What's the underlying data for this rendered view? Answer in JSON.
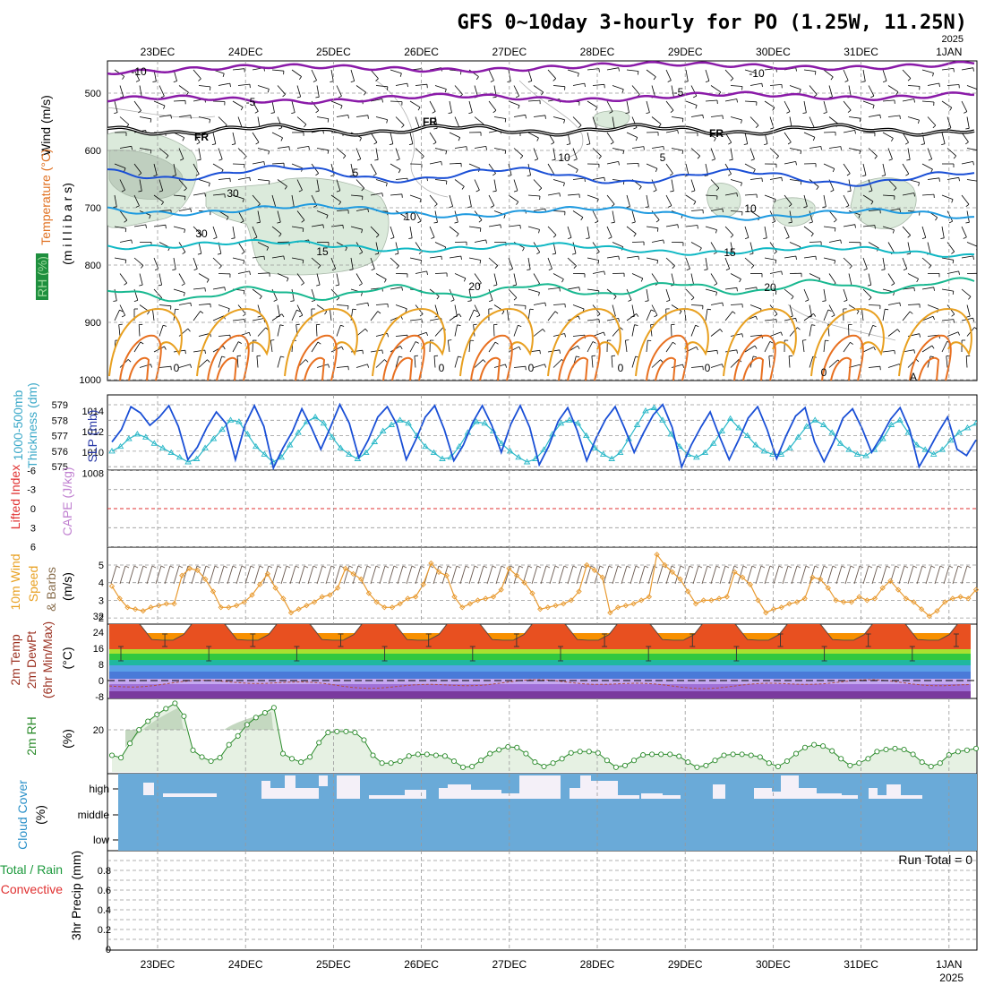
{
  "title": "GFS 0~10day 3-hourly for PO (1.25W, 11.25N)",
  "year_label": "2025",
  "dates": [
    "23DEC",
    "24DEC",
    "25DEC",
    "26DEC",
    "27DEC",
    "28DEC",
    "29DEC",
    "30DEC",
    "31DEC",
    "1JAN"
  ],
  "colors": {
    "purple": "#8a1aa8",
    "black": "#000000",
    "blue": "#1a4fd6",
    "lightblue": "#1e9ae0",
    "cyan": "#10b8c4",
    "green": "#18b890",
    "orange": "#e8a020",
    "darkorange": "#e87020",
    "rh_fill": "#d8ead8",
    "cloud": "#6aaad8",
    "red_dash": "#e03030",
    "grid": "#999999"
  },
  "panel_upper": {
    "label_wind": "Wind (m/s)",
    "label_temp": "Temperature (°C)",
    "label_rh": "RH (%)",
    "label_pressure": "(m i l l i b a r s)",
    "pressure_ticks": [
      "500",
      "600",
      "700",
      "800",
      "900",
      "1000"
    ],
    "contour_labels": [
      "-10",
      "-5",
      "FR",
      "FR",
      "FR",
      "5",
      "5",
      "10",
      "10",
      "15",
      "15",
      "20",
      "20",
      "-10",
      "-5",
      "0",
      "0",
      "0",
      "0",
      "0",
      "0",
      "30",
      "30",
      "10",
      "A"
    ]
  },
  "panel_slp": {
    "label_thick": "1000-500mb Thickness (dm)",
    "label_slp": "SLP (mb)",
    "thick_ticks": [
      "579",
      "578",
      "577",
      "576",
      "575"
    ],
    "slp_ticks": [
      "1014",
      "1012",
      "1010",
      "1008"
    ]
  },
  "panel_cape": {
    "label_li": "Lifted Index",
    "label_cape": "CAPE (J/kg)",
    "ticks": [
      "-6",
      "-3",
      "0",
      "3",
      "6"
    ]
  },
  "panel_wind": {
    "label_main": "10m Wind",
    "label_speed": "Speed",
    "label_units": "(m/s)",
    "label_barbs": "& Barbs",
    "ticks": [
      "5",
      "4",
      "3",
      "2"
    ]
  },
  "panel_temp": {
    "label_a": "2m Temp",
    "label_b": "2m DewPt",
    "label_c": "(6hr Min/Max)",
    "label_units": "(°C)",
    "ticks": [
      "32",
      "24",
      "16",
      "8",
      "0",
      "-8"
    ]
  },
  "panel_rh": {
    "label": "2m RH",
    "label_units": "(%)",
    "ticks": [
      "20"
    ]
  },
  "panel_cloud": {
    "label": "Cloud Cover",
    "label_units": "(%)",
    "levels": [
      "high",
      "middle",
      "low"
    ]
  },
  "panel_precip": {
    "label_a": "Total / Rain",
    "label_b": "Convective",
    "label_c": "3hr Precip (mm)",
    "ticks": [
      "0.8",
      "0.6",
      "0.4",
      "0.2",
      "0"
    ],
    "run_total": "Run Total = 0"
  },
  "chart_data": [
    {
      "type": "line",
      "name": "1000-500mb Thickness (dm)",
      "x_times": "3-hourly from 22DEC 18Z to 1JAN 06Z",
      "values": [
        576.0,
        576.3,
        576.8,
        577.1,
        576.9,
        576.5,
        576.2,
        575.9,
        575.6,
        575.3,
        575.5,
        576.2,
        576.8,
        577.4,
        578.0,
        577.9,
        577.1,
        576.3,
        575.8,
        575.3,
        575.6,
        576.4,
        577.2,
        577.9,
        578.2,
        577.8,
        576.9,
        576.2,
        575.8,
        575.5,
        575.9,
        576.6,
        577.3,
        577.7,
        578.0,
        577.8,
        577.0,
        576.3,
        575.9,
        575.5,
        575.6,
        576.3,
        577.2,
        577.9,
        577.8,
        577.3,
        576.5,
        576.0,
        575.6,
        575.3,
        575.5,
        576.1,
        577.1,
        577.8,
        578.0,
        577.8,
        577.0,
        576.2,
        575.8,
        575.5,
        575.9,
        576.8,
        577.7,
        578.6,
        578.8,
        578.0,
        577.1,
        576.3,
        575.8,
        575.6,
        575.9,
        576.5,
        577.3,
        578.1,
        577.5,
        577.0,
        576.4,
        576.0,
        575.8,
        575.8,
        576.2,
        576.9,
        577.6,
        578.0,
        577.7,
        577.2,
        576.5,
        576.1,
        575.8,
        575.7,
        576.1,
        576.8,
        577.7,
        578.0,
        577.2,
        576.4,
        576.1,
        575.8,
        576.1,
        576.7,
        577.2,
        577.5,
        577.8
      ]
    },
    {
      "type": "line",
      "name": "SLP (mb)",
      "values": [
        1011.0,
        1012.2,
        1014.4,
        1013.8,
        1012.6,
        1013.4,
        1014.5,
        1012.5,
        1009.3,
        1010.5,
        1012.4,
        1013.9,
        1012.8,
        1009.3,
        1012.6,
        1014.5,
        1012.5,
        1008.5,
        1010.4,
        1012.0,
        1014.2,
        1012.4,
        1010.3,
        1012.4,
        1014.6,
        1012.8,
        1009.5,
        1011.2,
        1013.4,
        1014.4,
        1012.7,
        1009.3,
        1011.2,
        1013.4,
        1014.5,
        1012.2,
        1009.2,
        1010.7,
        1012.9,
        1014.5,
        1012.6,
        1010.0,
        1012.7,
        1014.5,
        1012.4,
        1008.8,
        1010.6,
        1013.0,
        1014.3,
        1012.1,
        1009.2,
        1011.4,
        1013.2,
        1014.4,
        1012.3,
        1010.0,
        1011.9,
        1013.6,
        1014.6,
        1012.4,
        1008.6,
        1010.7,
        1012.4,
        1013.9,
        1011.5,
        1009.3,
        1011.2,
        1013.3,
        1014.4,
        1012.2,
        1009.4,
        1011.6,
        1013.5,
        1014.3,
        1011.0,
        1009.1,
        1011.0,
        1013.3,
        1014.2,
        1012.3,
        1010.0,
        1011.5,
        1013.2,
        1014.3,
        1012.2,
        1008.6,
        1010.2,
        1011.9,
        1013.4,
        1010.3,
        1009.7,
        1011.2
      ]
    },
    {
      "type": "line",
      "name": "10m Wind Speed (m/s)",
      "values": [
        3.8,
        3.1,
        2.6,
        2.5,
        2.4,
        2.6,
        2.7,
        2.8,
        2.8,
        4.4,
        4.8,
        4.7,
        4.2,
        3.5,
        2.6,
        2.6,
        2.7,
        2.9,
        3.3,
        3.9,
        4.5,
        3.7,
        3.1,
        2.3,
        2.5,
        2.7,
        2.9,
        3.2,
        3.3,
        3.7,
        4.8,
        4.5,
        4.2,
        3.4,
        2.9,
        2.6,
        2.6,
        2.8,
        3.1,
        3.2,
        3.9,
        5.1,
        4.6,
        4.4,
        3.2,
        2.6,
        2.8,
        3.0,
        3.1,
        3.2,
        3.6,
        4.8,
        4.4,
        4.0,
        3.4,
        2.5,
        2.6,
        2.7,
        2.8,
        3.0,
        3.5,
        5.0,
        4.7,
        4.3,
        2.3,
        2.6,
        2.7,
        2.8,
        3.0,
        3.2,
        5.6,
        5.0,
        4.6,
        4.2,
        3.5,
        2.8,
        3.0,
        3.0,
        3.1,
        3.2,
        4.6,
        4.3,
        3.9,
        3.0,
        2.3,
        2.5,
        2.6,
        2.8,
        2.9,
        3.1,
        4.3,
        4.2,
        3.7,
        3.0,
        2.9,
        2.9,
        3.2,
        3.0,
        3.1,
        3.7,
        4.1,
        3.6,
        3.1,
        2.9,
        2.5,
        2.1,
        2.4,
        2.9,
        3.1,
        3.2,
        3.1,
        3.6
      ]
    },
    {
      "type": "line",
      "name": "2m RH (%)",
      "values": [
        12.5,
        11.8,
        16.0,
        20.0,
        22.5,
        24.5,
        26.2,
        27.8,
        24.0,
        14.0,
        12.0,
        10.8,
        11.8,
        15.6,
        18.2,
        21.5,
        23.6,
        25.0,
        26.5,
        13.0,
        11.5,
        10.5,
        12.0,
        16.2,
        19.2,
        19.5,
        19.5,
        19.2,
        17.0,
        12.5,
        10.2,
        10.2,
        10.8,
        12.3,
        12.8,
        12.8,
        12.5,
        12.3,
        10.8,
        9.0,
        9.2,
        11.0,
        13.0,
        14.1,
        15.0,
        14.8,
        13.0,
        10.5,
        9.2,
        10.2,
        11.5,
        13.2,
        13.6,
        13.6,
        13.2,
        11.0,
        9.0,
        9.5,
        11.0,
        12.6,
        12.8,
        12.8,
        12.8,
        12.2,
        10.5,
        9.0,
        9.5,
        11.0,
        12.5,
        12.8,
        12.8,
        12.5,
        12.0,
        10.2,
        9.2,
        10.8,
        13.0,
        14.8,
        15.6,
        15.2,
        13.8,
        11.5,
        9.5,
        10.2,
        11.5,
        13.6,
        14.2,
        14.5,
        14.2,
        12.8,
        10.5,
        9.2,
        10.2,
        12.6,
        13.6,
        14.0,
        14.5
      ]
    }
  ]
}
